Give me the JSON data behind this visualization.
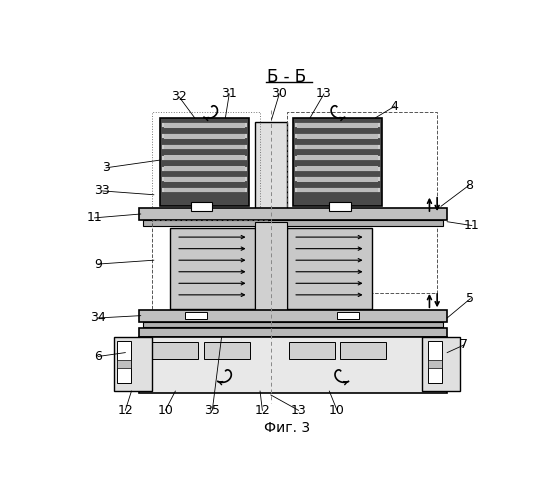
{
  "bg_color": "#ffffff",
  "title": "Б - Б",
  "caption": "Фиг. 3",
  "dark_fill": "#4a4a4a",
  "mid_fill": "#aaaaaa",
  "light_fill": "#cccccc",
  "platform_fill": "#c8c8c8",
  "white": "#ffffff",
  "black": "#000000"
}
